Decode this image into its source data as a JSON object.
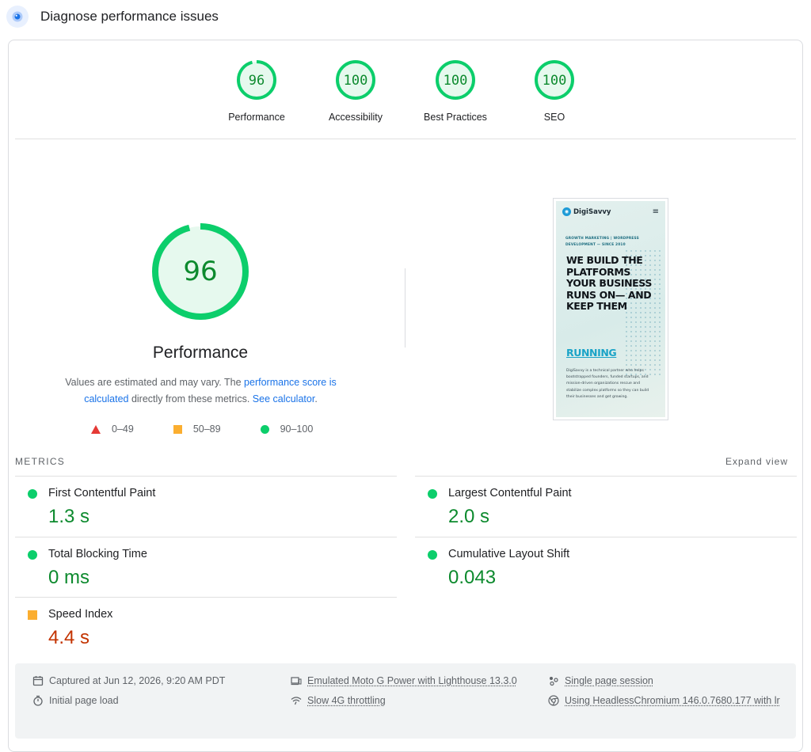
{
  "header": {
    "title": "Diagnose performance issues",
    "icon": "lighthouse-icon"
  },
  "category_scores": [
    {
      "label": "Performance",
      "score": "96"
    },
    {
      "label": "Accessibility",
      "score": "100"
    },
    {
      "label": "Best Practices",
      "score": "100"
    },
    {
      "label": "SEO",
      "score": "100"
    }
  ],
  "performance": {
    "score": "96",
    "title": "Performance",
    "desc_prefix": "Values are estimated and may vary. The ",
    "desc_link1": "performance score is calculated",
    "desc_middle": " directly from these metrics. ",
    "desc_link2": "See calculator",
    "desc_suffix": "."
  },
  "legend": [
    {
      "range": "0–49",
      "shape": "triangle",
      "color": "#e53935"
    },
    {
      "range": "50–89",
      "shape": "square",
      "color": "#fbae30"
    },
    {
      "range": "90–100",
      "shape": "circle",
      "color": "#0cce6b"
    }
  ],
  "screenshot": {
    "logo": "DigiSavvy",
    "eyebrow": "GROWTH MARKETING | WORDPRESS DEVELOPMENT — SINCE 2010",
    "headline": "WE BUILD THE PLATFORMS YOUR BUSINESS RUNS ON— AND KEEP THEM",
    "headline_accent": "RUNNING",
    "body": "DigiSavvy is a technical partner who helps bootstrapped founders, funded startups, and mission-driven organizations rescue and stabilize complex platforms so they can build their businesses and get growing."
  },
  "metrics_section": {
    "label": "METRICS",
    "expand": "Expand view"
  },
  "metrics": [
    {
      "title": "First Contentful Paint",
      "value": "1.3 s",
      "rating": "pass"
    },
    {
      "title": "Largest Contentful Paint",
      "value": "2.0 s",
      "rating": "pass"
    },
    {
      "title": "Total Blocking Time",
      "value": "0 ms",
      "rating": "pass"
    },
    {
      "title": "Cumulative Layout Shift",
      "value": "0.043",
      "rating": "pass"
    },
    {
      "title": "Speed Index",
      "value": "4.4 s",
      "rating": "average"
    }
  ],
  "footer": {
    "captured": "Captured at Jun 12, 2026, 9:20 AM PDT",
    "load": "Initial page load",
    "device": "Emulated Moto G Power with Lighthouse 13.3.0",
    "throttle": "Slow 4G throttling",
    "session": "Single page session",
    "browser": "Using HeadlessChromium 146.0.7680.177 with lr"
  },
  "colors": {
    "pass": "#0cce6b",
    "pass_text": "#0d8a2e",
    "average": "#fbae30",
    "average_text": "#c33300",
    "link": "#1a73e8"
  }
}
